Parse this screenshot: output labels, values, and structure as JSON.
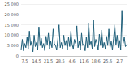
{
  "chart_data": {
    "type": "line",
    "color": "#1f5f7a",
    "grid": true,
    "categories": [
      null,
      null,
      null,
      "7.5",
      null,
      null,
      null,
      null,
      null,
      null,
      null,
      null,
      null,
      "14.5",
      null,
      null,
      null,
      null,
      null,
      null,
      null,
      null,
      null,
      "21.5",
      null,
      null,
      null,
      null,
      null,
      null,
      null,
      null,
      null,
      "28.5",
      null,
      null,
      null,
      null,
      null,
      null,
      null,
      null,
      null,
      "4.6",
      null,
      null,
      null,
      null,
      null,
      null,
      null,
      null,
      null,
      "11.6",
      null,
      null,
      null,
      null,
      null,
      null,
      null,
      null,
      null,
      "18.6",
      null,
      null,
      null,
      null,
      null,
      null,
      null,
      null,
      null,
      "25.6",
      null,
      null,
      null,
      null,
      null,
      null,
      null,
      null,
      null,
      "2.7",
      null,
      null,
      null,
      null,
      null,
      null
    ],
    "values": [
      3000,
      8000,
      2500,
      6000,
      4000,
      9000,
      3500,
      12000,
      5000,
      7000,
      2000,
      10000,
      4500,
      6500,
      3000,
      14000,
      5000,
      8500,
      4000,
      6000,
      2500,
      9500,
      5500,
      11000,
      3500,
      7000,
      4000,
      13000,
      6000,
      5000,
      3000,
      8000,
      15000,
      4000,
      6500,
      3500,
      10000,
      5000,
      7500,
      3000,
      9000,
      4500,
      12000,
      5500,
      3500,
      8000,
      6000,
      14500,
      4000,
      7000,
      3000,
      11000,
      5000,
      6000,
      2500,
      9000,
      4000,
      16000,
      5500,
      7000,
      3500,
      17500,
      4500,
      8000,
      6000,
      3000,
      10500,
      5000,
      12500,
      4000,
      6500,
      3500,
      9500,
      5000,
      13000,
      4000,
      7000,
      3000,
      8500,
      15000,
      5500,
      10000,
      4000,
      7500,
      3000,
      22000,
      6000,
      9000,
      4500,
      5500
    ],
    "ylim": [
      0,
      25000
    ],
    "yticks": [
      0,
      {
        "value": 5000,
        "label": "5 000"
      },
      {
        "value": 10000,
        "label": "10 000"
      },
      {
        "value": 15000,
        "label": "15 000"
      },
      {
        "value": 20000,
        "label": "20 000"
      },
      {
        "value": 25000,
        "label": "25 000"
      }
    ]
  }
}
